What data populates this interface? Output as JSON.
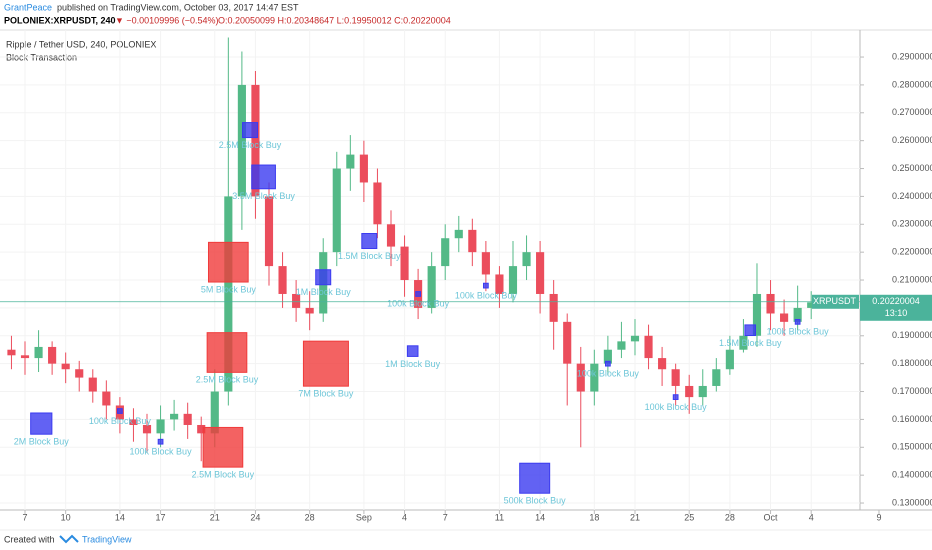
{
  "header": {
    "author": "GrantPeace",
    "published": "published on TradingView.com, October 03, 2017 14:47 EST",
    "symbol": "POLONIEX:XRPUSDT, 240",
    "change": "▼ −0.00109996 (−0.54%)",
    "ohlc": "O:0.20050099 H:0.20348647 L:0.19950012 C:0.20220004"
  },
  "footer": {
    "created": "Created with",
    "brand": "TradingView"
  },
  "chart_data": {
    "type": "candlestick",
    "title": "Ripple / Tether USD, 240, POLONIEX",
    "subtitle": "Block Transaction",
    "up_color": "#53b987",
    "down_color": "#eb4d5c",
    "xlim": [
      5.155,
      68.6
    ],
    "xticks": [
      {
        "value": 7,
        "label": "7"
      },
      {
        "value": 10,
        "label": "10"
      },
      {
        "value": 14,
        "label": "14"
      },
      {
        "value": 17,
        "label": "17"
      },
      {
        "value": 21,
        "label": "21"
      },
      {
        "value": 24,
        "label": "24"
      },
      {
        "value": 28,
        "label": "28"
      },
      {
        "value": 32,
        "label": "Sep"
      },
      {
        "value": 35,
        "label": "4"
      },
      {
        "value": 38,
        "label": "7"
      },
      {
        "value": 42,
        "label": "11"
      },
      {
        "value": 45,
        "label": "14"
      },
      {
        "value": 49,
        "label": "18"
      },
      {
        "value": 52,
        "label": "21"
      },
      {
        "value": 56,
        "label": "25"
      },
      {
        "value": 59,
        "label": "28"
      },
      {
        "value": 62,
        "label": "Oct"
      },
      {
        "value": 65,
        "label": "4"
      },
      {
        "value": 70,
        "label": "9"
      }
    ],
    "ylim": [
      0.1275,
      0.2997
    ],
    "yticks": [
      {
        "value": 0.13,
        "label": "0.13000000"
      },
      {
        "value": 0.14,
        "label": "0.14000000"
      },
      {
        "value": 0.15,
        "label": "0.15000000"
      },
      {
        "value": 0.16,
        "label": "0.16000000"
      },
      {
        "value": 0.17,
        "label": "0.17000000"
      },
      {
        "value": 0.18,
        "label": "0.18000000"
      },
      {
        "value": 0.19,
        "label": "0.19000000"
      },
      {
        "value": 0.2,
        "label": "0.20000000"
      },
      {
        "value": 0.21,
        "label": "0.21000000"
      },
      {
        "value": 0.22,
        "label": "0.22000000"
      },
      {
        "value": 0.23,
        "label": "0.23000000"
      },
      {
        "value": 0.24,
        "label": "0.24000000"
      },
      {
        "value": 0.25,
        "label": "0.25000000"
      },
      {
        "value": 0.26,
        "label": "0.26000000"
      },
      {
        "value": 0.27,
        "label": "0.27000000"
      },
      {
        "value": 0.28,
        "label": "0.28000000"
      },
      {
        "value": 0.29,
        "label": "0.29000000"
      }
    ],
    "x": [
      6,
      7,
      8,
      9,
      10,
      11,
      12,
      13,
      14,
      15,
      16,
      17,
      18,
      19,
      20,
      21,
      22,
      23,
      24,
      25,
      26,
      27,
      28,
      29,
      30,
      31,
      32,
      33,
      34,
      35,
      36,
      37,
      38,
      39,
      40,
      41,
      42,
      43,
      44,
      45,
      46,
      47,
      48,
      49,
      50,
      51,
      52,
      53,
      54,
      55,
      56,
      57,
      58,
      59,
      60,
      61,
      62,
      63,
      64,
      65
    ],
    "open": [
      0.185,
      0.183,
      0.182,
      0.186,
      0.18,
      0.178,
      0.175,
      0.17,
      0.165,
      0.16,
      0.158,
      0.155,
      0.16,
      0.162,
      0.158,
      0.155,
      0.17,
      0.24,
      0.28,
      0.24,
      0.215,
      0.205,
      0.2,
      0.198,
      0.22,
      0.25,
      0.255,
      0.245,
      0.23,
      0.222,
      0.21,
      0.2,
      0.215,
      0.225,
      0.228,
      0.22,
      0.212,
      0.205,
      0.215,
      0.22,
      0.205,
      0.195,
      0.18,
      0.17,
      0.18,
      0.185,
      0.188,
      0.19,
      0.182,
      0.178,
      0.172,
      0.168,
      0.172,
      0.178,
      0.185,
      0.19,
      0.205,
      0.198,
      0.195,
      0.2
    ],
    "high": [
      0.19,
      0.188,
      0.192,
      0.188,
      0.184,
      0.181,
      0.178,
      0.174,
      0.168,
      0.164,
      0.162,
      0.165,
      0.167,
      0.166,
      0.161,
      0.178,
      0.297,
      0.292,
      0.285,
      0.245,
      0.22,
      0.21,
      0.206,
      0.225,
      0.256,
      0.262,
      0.26,
      0.25,
      0.235,
      0.226,
      0.214,
      0.22,
      0.23,
      0.233,
      0.232,
      0.224,
      0.215,
      0.224,
      0.226,
      0.224,
      0.21,
      0.198,
      0.186,
      0.185,
      0.19,
      0.195,
      0.196,
      0.194,
      0.186,
      0.18,
      0.176,
      0.178,
      0.182,
      0.19,
      0.196,
      0.216,
      0.21,
      0.203,
      0.208,
      0.206
    ],
    "low": [
      0.178,
      0.176,
      0.177,
      0.176,
      0.173,
      0.17,
      0.166,
      0.16,
      0.155,
      0.152,
      0.148,
      0.15,
      0.156,
      0.153,
      0.145,
      0.15,
      0.165,
      0.228,
      0.232,
      0.208,
      0.2,
      0.195,
      0.192,
      0.195,
      0.215,
      0.242,
      0.238,
      0.225,
      0.215,
      0.204,
      0.196,
      0.198,
      0.21,
      0.22,
      0.215,
      0.206,
      0.2,
      0.202,
      0.21,
      0.198,
      0.185,
      0.165,
      0.15,
      0.165,
      0.176,
      0.182,
      0.183,
      0.178,
      0.172,
      0.165,
      0.162,
      0.165,
      0.17,
      0.176,
      0.184,
      0.186,
      0.192,
      0.19,
      0.192,
      0.196
    ],
    "close": [
      0.183,
      0.182,
      0.186,
      0.18,
      0.178,
      0.175,
      0.17,
      0.165,
      0.16,
      0.158,
      0.155,
      0.16,
      0.162,
      0.158,
      0.155,
      0.17,
      0.24,
      0.28,
      0.24,
      0.215,
      0.205,
      0.2,
      0.198,
      0.22,
      0.25,
      0.255,
      0.245,
      0.23,
      0.222,
      0.21,
      0.2,
      0.215,
      0.225,
      0.228,
      0.22,
      0.212,
      0.205,
      0.215,
      0.22,
      0.205,
      0.195,
      0.18,
      0.17,
      0.18,
      0.185,
      0.188,
      0.19,
      0.182,
      0.178,
      0.172,
      0.168,
      0.172,
      0.178,
      0.185,
      0.19,
      0.205,
      0.198,
      0.195,
      0.2,
      0.202
    ],
    "blocks": [
      {
        "x": 8.2,
        "price": 0.1585,
        "size": 2,
        "color": "#3b3bf0",
        "label": "2M Block Buy"
      },
      {
        "x": 22.0,
        "price": 0.2164,
        "size": 7,
        "color": "#f03b3b",
        "label": "5M Block Buy"
      },
      {
        "x": 21.9,
        "price": 0.184,
        "size": 7,
        "color": "#f03b3b",
        "label": "2.5M Block Buy"
      },
      {
        "x": 21.6,
        "price": 0.15,
        "size": 7,
        "color": "#f03b3b",
        "label": "2.5M Block Buy"
      },
      {
        "x": 29.2,
        "price": 0.18,
        "size": 9,
        "color": "#f03b3b",
        "label": "7M Block Buy"
      },
      {
        "x": 23.6,
        "price": 0.2638,
        "size": 1,
        "color": "#3b3bf0",
        "label": "2.5M Block Buy"
      },
      {
        "x": 24.6,
        "price": 0.247,
        "size": 2.5,
        "color": "#3b3bf0",
        "label": "3.5M Block Buy"
      },
      {
        "x": 44.6,
        "price": 0.1389,
        "size": 4,
        "color": "#3b3bf0",
        "label": "500k Block Buy"
      },
      {
        "x": 32.4,
        "price": 0.224,
        "size": 1,
        "color": "#3b3bf0",
        "label": "1.5M Block Buy"
      },
      {
        "x": 29.0,
        "price": 0.211,
        "size": 1,
        "color": "#3b3bf0",
        "label": "1M Block Buy"
      },
      {
        "x": 35.6,
        "price": 0.1845,
        "size": 0.5,
        "color": "#3b3bf0",
        "label": "1M Block Buy"
      },
      {
        "x": 14.0,
        "price": 0.163,
        "size": 0.1,
        "color": "#3b3bf0",
        "label": "100k Block Buy"
      },
      {
        "x": 17.0,
        "price": 0.152,
        "size": 0.1,
        "color": "#3b3bf0",
        "label": "100k Block Buy"
      },
      {
        "x": 36.0,
        "price": 0.205,
        "size": 0.1,
        "color": "#3b3bf0",
        "label": "100k Block Buy"
      },
      {
        "x": 41.0,
        "price": 0.208,
        "size": 0.1,
        "color": "#3b3bf0",
        "label": "100k Block Buy"
      },
      {
        "x": 50.0,
        "price": 0.18,
        "size": 0.1,
        "color": "#3b3bf0",
        "label": "100k Block Buy"
      },
      {
        "x": 55.0,
        "price": 0.168,
        "size": 0.1,
        "color": "#3b3bf0",
        "label": "100k Block Buy"
      },
      {
        "x": 60.5,
        "price": 0.192,
        "size": 0.5,
        "color": "#3b3bf0",
        "label": "1.5M Block Buy"
      },
      {
        "x": 64.0,
        "price": 0.195,
        "size": 0.1,
        "color": "#3b3bf0",
        "label": "100k Block Buy"
      }
    ],
    "last_price": 0.20220004,
    "last_symbol": "XRPUSDT",
    "countdown": "13:10",
    "last_color": "#4bb39b"
  }
}
